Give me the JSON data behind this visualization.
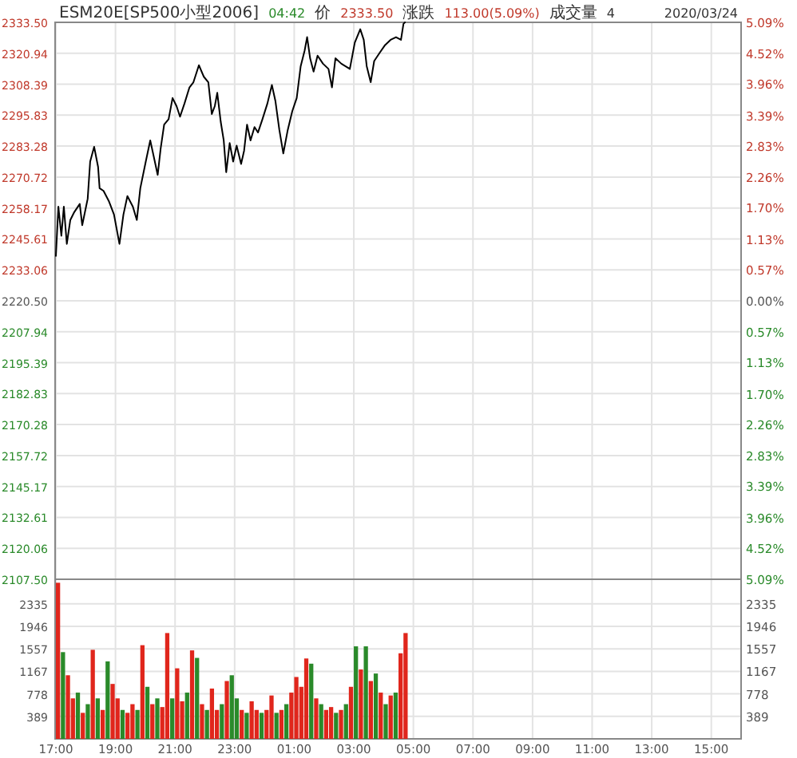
{
  "chart_data": [
    {
      "type": "line",
      "title": "ESM20E[SP500小型2006]",
      "annotations": [
        "04:42",
        "价",
        "2333.50",
        "涨跌",
        "113.00(5.09%)",
        "成交量",
        "4",
        "2020/03/24"
      ],
      "x": [
        "2020-03-23T17:00",
        "2020-03-23T17:05",
        "2020-03-23T17:11",
        "2020-03-23T17:16",
        "2020-03-23T17:22",
        "2020-03-23T17:29",
        "2020-03-23T17:37",
        "2020-03-23T17:48",
        "2020-03-23T17:53",
        "2020-03-23T18:04",
        "2020-03-23T18:09",
        "2020-03-23T18:17",
        "2020-03-23T18:25",
        "2020-03-23T18:28",
        "2020-03-23T18:36",
        "2020-03-23T18:47",
        "2020-03-23T18:57",
        "2020-03-23T19:08",
        "2020-03-23T19:16",
        "2020-03-23T19:24",
        "2020-03-23T19:35",
        "2020-03-23T19:43",
        "2020-03-23T19:50",
        "2020-03-23T20:01",
        "2020-03-23T20:10",
        "2020-03-23T20:17",
        "2020-03-23T20:25",
        "2020-03-23T20:31",
        "2020-03-23T20:38",
        "2020-03-23T20:47",
        "2020-03-23T20:55",
        "2020-03-23T21:03",
        "2020-03-23T21:10",
        "2020-03-23T21:19",
        "2020-03-23T21:29",
        "2020-03-23T21:37",
        "2020-03-23T21:48",
        "2020-03-23T21:58",
        "2020-03-23T22:07",
        "2020-03-23T22:14",
        "2020-03-23T22:20",
        "2020-03-23T22:25",
        "2020-03-23T22:32",
        "2020-03-23T22:38",
        "2020-03-23T22:43",
        "2020-03-23T22:50",
        "2020-03-23T22:57",
        "2020-03-23T23:04",
        "2020-03-23T23:13",
        "2020-03-23T23:19",
        "2020-03-23T23:25",
        "2020-03-23T23:32",
        "2020-03-23T23:40",
        "2020-03-23T23:47",
        "2020-03-23T23:56",
        "2020-03-24T00:06",
        "2020-03-24T00:15",
        "2020-03-24T00:22",
        "2020-03-24T00:30",
        "2020-03-24T00:38",
        "2020-03-24T00:47",
        "2020-03-24T00:56",
        "2020-03-24T01:05",
        "2020-03-24T01:13",
        "2020-03-24T01:21",
        "2020-03-24T01:26",
        "2020-03-24T01:32",
        "2020-03-24T01:39",
        "2020-03-24T01:47",
        "2020-03-24T01:58",
        "2020-03-24T02:09",
        "2020-03-24T02:16",
        "2020-03-24T02:23",
        "2020-03-24T02:35",
        "2020-03-24T02:52",
        "2020-03-24T03:02",
        "2020-03-24T03:13",
        "2020-03-24T03:20",
        "2020-03-24T03:26",
        "2020-03-24T03:34",
        "2020-03-24T03:41",
        "2020-03-24T03:52",
        "2020-03-24T04:03",
        "2020-03-24T04:14",
        "2020-03-24T04:25",
        "2020-03-24T04:35",
        "2020-03-24T04:40",
        "2020-03-24T04:43"
      ],
      "series": [
        {
          "color": "#000000",
          "values": [
            2238.7,
            2258.7,
            2246.9,
            2258.7,
            2243.6,
            2253.3,
            2256.5,
            2259.8,
            2251.2,
            2261.9,
            2277.0,
            2283.0,
            2274.8,
            2266.2,
            2265.1,
            2260.8,
            2255.5,
            2243.6,
            2255.5,
            2263.0,
            2258.7,
            2253.3,
            2266.2,
            2277.0,
            2285.6,
            2279.1,
            2271.6,
            2282.3,
            2292.0,
            2294.2,
            2302.8,
            2299.5,
            2295.2,
            2300.6,
            2307.1,
            2309.2,
            2316.1,
            2311.4,
            2309.2,
            2296.3,
            2299.5,
            2304.9,
            2293.1,
            2285.6,
            2272.7,
            2284.5,
            2277.0,
            2283.5,
            2276.0,
            2281.4,
            2292.0,
            2285.6,
            2291.0,
            2288.8,
            2294.2,
            2300.6,
            2308.1,
            2301.7,
            2289.9,
            2280.3,
            2289.9,
            2297.4,
            2302.8,
            2315.7,
            2322.1,
            2327.5,
            2318.9,
            2313.5,
            2320.0,
            2316.7,
            2314.6,
            2307.1,
            2318.9,
            2316.7,
            2314.6,
            2325.3,
            2330.7,
            2326.4,
            2315.7,
            2309.2,
            2317.8,
            2321.1,
            2324.3,
            2326.4,
            2327.5,
            2326.4,
            2332.9,
            2333.5
          ]
        }
      ],
      "xlim": [
        "2020-03-23T17:00",
        "2020-03-24T16:00"
      ],
      "xticks": [
        {
          "value": "2020-03-23T17:00",
          "label": null
        },
        {
          "value": "2020-03-23T19:00",
          "label": null
        },
        {
          "value": "2020-03-23T21:00",
          "label": null
        },
        {
          "value": "2020-03-23T23:00",
          "label": null
        },
        {
          "value": "2020-03-24T01:00",
          "label": null
        },
        {
          "value": "2020-03-24T03:00",
          "label": null
        },
        {
          "value": "2020-03-24T05:00",
          "label": null
        },
        {
          "value": "2020-03-24T07:00",
          "label": null
        },
        {
          "value": "2020-03-24T09:00",
          "label": null
        },
        {
          "value": "2020-03-24T11:00",
          "label": null
        },
        {
          "value": "2020-03-24T13:00",
          "label": null
        },
        {
          "value": "2020-03-24T15:00",
          "label": null
        }
      ],
      "ylim": [
        2107.5,
        2333.5
      ],
      "yticks": [
        {
          "value": 2107.5,
          "label": "2107.50"
        },
        2120.06,
        2132.61,
        2145.17,
        2157.72,
        2170.28,
        2182.83,
        2195.39,
        2207.94,
        {
          "value": 2220.5,
          "label": "2220.50"
        },
        2233.06,
        2245.61,
        2258.17,
        2270.72,
        2283.28,
        2295.83,
        2308.39,
        2320.94,
        {
          "value": 2333.5,
          "label": "2333.50"
        }
      ],
      "y2lim": [
        -5.09,
        5.09
      ],
      "y2ticks": [
        {
          "value": -5.09,
          "label": "5.09%"
        },
        {
          "value": -4.52,
          "label": "4.52%"
        },
        {
          "value": -3.96,
          "label": "3.96%"
        },
        {
          "value": -3.39,
          "label": "3.39%"
        },
        {
          "value": -2.83,
          "label": "2.83%"
        },
        {
          "value": -2.26,
          "label": "2.26%"
        },
        {
          "value": -1.7,
          "label": "1.70%"
        },
        {
          "value": -1.13,
          "label": "1.13%"
        },
        {
          "value": -0.57,
          "label": "0.57%"
        },
        {
          "value": 0,
          "label": "0.00%"
        },
        {
          "value": 0.57,
          "label": "0.57%"
        },
        {
          "value": 1.13,
          "label": "1.13%"
        },
        {
          "value": 1.7,
          "label": "1.70%"
        },
        {
          "value": 2.26,
          "label": "2.26%"
        },
        {
          "value": 2.83,
          "label": "2.83%"
        },
        {
          "value": 3.39,
          "label": "3.39%"
        },
        {
          "value": 3.96,
          "label": "3.96%"
        },
        {
          "value": 4.52,
          "label": "4.52%"
        },
        {
          "value": 5.09,
          "label": "5.09%"
        }
      ],
      "grid": true,
      "tick_labels": "y",
      "marker": "none",
      "line_style": "solid"
    },
    {
      "type": "bar",
      "x": [
        "2020-03-23T17:00",
        "2020-03-23T17:10",
        "2020-03-23T17:20",
        "2020-03-23T17:30",
        "2020-03-23T17:40",
        "2020-03-23T17:50",
        "2020-03-23T18:00",
        "2020-03-23T18:10",
        "2020-03-23T18:20",
        "2020-03-23T18:30",
        "2020-03-23T18:40",
        "2020-03-23T18:50",
        "2020-03-23T19:00",
        "2020-03-23T19:10",
        "2020-03-23T19:20",
        "2020-03-23T19:30",
        "2020-03-23T19:40",
        "2020-03-23T19:50",
        "2020-03-23T20:00",
        "2020-03-23T20:10",
        "2020-03-23T20:20",
        "2020-03-23T20:30",
        "2020-03-23T20:40",
        "2020-03-23T20:50",
        "2020-03-23T21:00",
        "2020-03-23T21:10",
        "2020-03-23T21:20",
        "2020-03-23T21:30",
        "2020-03-23T21:40",
        "2020-03-23T21:50",
        "2020-03-23T22:00",
        "2020-03-23T22:10",
        "2020-03-23T22:20",
        "2020-03-23T22:30",
        "2020-03-23T22:40",
        "2020-03-23T22:50",
        "2020-03-23T23:00",
        "2020-03-23T23:10",
        "2020-03-23T23:20",
        "2020-03-23T23:30",
        "2020-03-23T23:40",
        "2020-03-23T23:50",
        "2020-03-24T00:00",
        "2020-03-24T00:10",
        "2020-03-24T00:20",
        "2020-03-24T00:30",
        "2020-03-24T00:40",
        "2020-03-24T00:50",
        "2020-03-24T01:00",
        "2020-03-24T01:10",
        "2020-03-24T01:20",
        "2020-03-24T01:30",
        "2020-03-24T01:40",
        "2020-03-24T01:50",
        "2020-03-24T02:00",
        "2020-03-24T02:10",
        "2020-03-24T02:20",
        "2020-03-24T02:30",
        "2020-03-24T02:40",
        "2020-03-24T02:50",
        "2020-03-24T03:00",
        "2020-03-24T03:10",
        "2020-03-24T03:20",
        "2020-03-24T03:30",
        "2020-03-24T03:40",
        "2020-03-24T03:50",
        "2020-03-24T04:00",
        "2020-03-24T04:10",
        "2020-03-24T04:20",
        "2020-03-24T04:30",
        "2020-03-24T04:40"
      ],
      "values": [
        2700,
        1500,
        1100,
        700,
        800,
        450,
        600,
        1540,
        700,
        500,
        1340,
        950,
        700,
        500,
        450,
        600,
        500,
        1620,
        900,
        600,
        700,
        550,
        1830,
        700,
        1220,
        650,
        800,
        1530,
        1400,
        600,
        500,
        870,
        500,
        600,
        1000,
        1100,
        700,
        500,
        450,
        650,
        500,
        450,
        500,
        750,
        450,
        500,
        600,
        800,
        1070,
        900,
        1390,
        1300,
        700,
        600,
        500,
        550,
        450,
        500,
        600,
        900,
        1600,
        1200,
        1600,
        1000,
        1130,
        800,
        600,
        750,
        800,
        1480,
        1830
      ],
      "colors": [
        "#e0261c",
        "#2a8a2a",
        "#e0261c",
        "#e0261c",
        "#2a8a2a",
        "#e0261c",
        "#2a8a2a",
        "#e0261c",
        "#2a8a2a",
        "#e0261c",
        "#2a8a2a",
        "#e0261c",
        "#e0261c",
        "#2a8a2a",
        "#e0261c",
        "#e0261c",
        "#2a8a2a",
        "#e0261c",
        "#2a8a2a",
        "#e0261c",
        "#2a8a2a",
        "#e0261c",
        "#e0261c",
        "#2a8a2a",
        "#e0261c",
        "#e0261c",
        "#2a8a2a",
        "#e0261c",
        "#2a8a2a",
        "#e0261c",
        "#2a8a2a",
        "#e0261c",
        "#e0261c",
        "#2a8a2a",
        "#e0261c",
        "#2a8a2a",
        "#2a8a2a",
        "#e0261c",
        "#2a8a2a",
        "#e0261c",
        "#e0261c",
        "#2a8a2a",
        "#e0261c",
        "#e0261c",
        "#2a8a2a",
        "#e0261c",
        "#2a8a2a",
        "#e0261c",
        "#e0261c",
        "#e0261c",
        "#e0261c",
        "#2a8a2a",
        "#e0261c",
        "#2a8a2a",
        "#e0261c",
        "#e0261c",
        "#2a8a2a",
        "#e0261c",
        "#2a8a2a",
        "#e0261c",
        "#2a8a2a",
        "#e0261c",
        "#2a8a2a",
        "#e0261c",
        "#2a8a2a",
        "#e0261c",
        "#2a8a2a",
        "#e0261c",
        "#2a8a2a",
        "#e0261c",
        "#e0261c"
      ],
      "xlim": [
        "2020-03-23T17:00",
        "2020-03-24T16:00"
      ],
      "xticks": [
        {
          "value": "2020-03-23T17:00",
          "label": "17:00"
        },
        {
          "value": "2020-03-23T19:00",
          "label": "19:00"
        },
        {
          "value": "2020-03-23T21:00",
          "label": "21:00"
        },
        {
          "value": "2020-03-23T23:00",
          "label": "23:00"
        },
        {
          "value": "2020-03-24T01:00",
          "label": "01:00"
        },
        {
          "value": "2020-03-24T03:00",
          "label": "03:00"
        },
        {
          "value": "2020-03-24T05:00",
          "label": "05:00"
        },
        {
          "value": "2020-03-24T07:00",
          "label": "07:00"
        },
        {
          "value": "2020-03-24T09:00",
          "label": "09:00"
        },
        {
          "value": "2020-03-24T11:00",
          "label": "11:00"
        },
        {
          "value": "2020-03-24T13:00",
          "label": "13:00"
        },
        {
          "value": "2020-03-24T15:00",
          "label": "15:00"
        }
      ],
      "ylim": [
        0,
        2760
      ],
      "yticks": [
        389,
        778,
        1167,
        1557,
        1946,
        2335
      ],
      "y2lim": [
        0,
        2760
      ],
      "y2ticks": [
        389,
        778,
        1167,
        1557,
        1946,
        2335
      ],
      "grid": true
    }
  ]
}
